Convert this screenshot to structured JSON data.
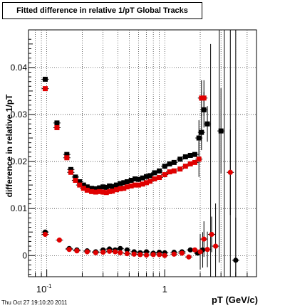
{
  "chart_data": {
    "type": "scatter",
    "title": "Fitted difference in relative 1/pT  Global Tracks",
    "xlabel": "pT (GeV/c)",
    "ylabel": "difference in relative 1/pT",
    "xscale": "log",
    "xlim": [
      0.07,
      6.0
    ],
    "ylim": [
      -0.0045,
      0.048
    ],
    "grid": true,
    "x_ticks": [
      {
        "v": 0.1,
        "label": "10",
        "sup": "-1"
      },
      {
        "v": 1,
        "label": "1",
        "sup": ""
      }
    ],
    "y_ticks": [
      {
        "v": 0,
        "label": "0"
      },
      {
        "v": 0.01,
        "label": "0.01"
      },
      {
        "v": 0.02,
        "label": "0.02"
      },
      {
        "v": 0.03,
        "label": "0.03"
      },
      {
        "v": 0.04,
        "label": "0.04"
      }
    ],
    "series": [
      {
        "marker": "square",
        "color": "#000000",
        "points": [
          [
            0.097,
            0.0375
          ],
          [
            0.122,
            0.0282
          ],
          [
            0.148,
            0.0215
          ],
          [
            0.16,
            0.0183
          ],
          [
            0.175,
            0.0167
          ],
          [
            0.19,
            0.0157
          ],
          [
            0.205,
            0.015
          ],
          [
            0.22,
            0.0146
          ],
          [
            0.24,
            0.0143
          ],
          [
            0.26,
            0.0142
          ],
          [
            0.28,
            0.0144
          ],
          [
            0.3,
            0.0146
          ],
          [
            0.32,
            0.0145
          ],
          [
            0.34,
            0.0148
          ],
          [
            0.36,
            0.0147
          ],
          [
            0.39,
            0.015
          ],
          [
            0.42,
            0.0153
          ],
          [
            0.45,
            0.0155
          ],
          [
            0.48,
            0.0157
          ],
          [
            0.52,
            0.016
          ],
          [
            0.56,
            0.0163
          ],
          [
            0.6,
            0.0162
          ],
          [
            0.65,
            0.0165
          ],
          [
            0.7,
            0.0168
          ],
          [
            0.75,
            0.017
          ],
          [
            0.82,
            0.0176
          ],
          [
            0.9,
            0.018
          ],
          [
            1.0,
            0.019
          ],
          [
            1.1,
            0.0195
          ],
          [
            1.2,
            0.0198
          ],
          [
            1.35,
            0.0205
          ],
          [
            1.5,
            0.021
          ],
          [
            1.65,
            0.0213
          ],
          [
            1.8,
            0.0215
          ],
          [
            1.95,
            0.025
          ],
          [
            2.05,
            0.0262
          ],
          [
            2.15,
            0.031
          ],
          [
            2.3,
            0.028
          ],
          [
            3.0,
            0.0265
          ]
        ]
      },
      {
        "marker": "square",
        "color": "#e00000",
        "points": [
          [
            0.097,
            0.0355
          ],
          [
            0.122,
            0.0272
          ],
          [
            0.148,
            0.0208
          ],
          [
            0.16,
            0.0177
          ],
          [
            0.175,
            0.016
          ],
          [
            0.19,
            0.015
          ],
          [
            0.205,
            0.0143
          ],
          [
            0.22,
            0.0139
          ],
          [
            0.24,
            0.0136
          ],
          [
            0.26,
            0.0135
          ],
          [
            0.28,
            0.0136
          ],
          [
            0.3,
            0.0135
          ],
          [
            0.32,
            0.0134
          ],
          [
            0.34,
            0.0136
          ],
          [
            0.36,
            0.0137
          ],
          [
            0.39,
            0.014
          ],
          [
            0.42,
            0.0142
          ],
          [
            0.45,
            0.0143
          ],
          [
            0.48,
            0.0146
          ],
          [
            0.52,
            0.0148
          ],
          [
            0.56,
            0.015
          ],
          [
            0.6,
            0.015
          ],
          [
            0.65,
            0.0152
          ],
          [
            0.7,
            0.0155
          ],
          [
            0.75,
            0.0158
          ],
          [
            0.82,
            0.0163
          ],
          [
            0.9,
            0.0166
          ],
          [
            1.0,
            0.0172
          ],
          [
            1.1,
            0.0178
          ],
          [
            1.2,
            0.018
          ],
          [
            1.35,
            0.0184
          ],
          [
            1.5,
            0.019
          ],
          [
            1.65,
            0.0195
          ],
          [
            1.8,
            0.0198
          ],
          [
            1.95,
            0.0205
          ],
          [
            2.05,
            0.0335
          ],
          [
            2.15,
            0.0335
          ]
        ]
      },
      {
        "marker": "circle",
        "color": "#000000",
        "points": [
          [
            0.097,
            0.005
          ],
          [
            0.155,
            0.0015
          ],
          [
            0.18,
            0.0012
          ],
          [
            0.22,
            0.001
          ],
          [
            0.26,
            0.0008
          ],
          [
            0.3,
            0.0012
          ],
          [
            0.34,
            0.0014
          ],
          [
            0.38,
            0.0012
          ],
          [
            0.42,
            0.0015
          ],
          [
            0.48,
            0.0012
          ],
          [
            0.55,
            0.0008
          ],
          [
            0.62,
            0.0006
          ],
          [
            0.7,
            0.0008
          ],
          [
            0.8,
            0.0005
          ],
          [
            0.9,
            0.0007
          ],
          [
            1.0,
            0.0006
          ],
          [
            1.2,
            0.0007
          ],
          [
            1.4,
            0.0008
          ],
          [
            1.65,
            0.0012
          ],
          [
            1.9,
            0.0005
          ],
          [
            2.1,
            0.0012
          ],
          [
            4.0,
            -0.001
          ]
        ]
      },
      {
        "marker": "circle",
        "color": "#e00000",
        "points": [
          [
            0.097,
            0.0045
          ],
          [
            0.128,
            0.0033
          ],
          [
            0.155,
            0.0013
          ],
          [
            0.18,
            0.001
          ],
          [
            0.22,
            0.0008
          ],
          [
            0.26,
            0.0006
          ],
          [
            0.3,
            0.0007
          ],
          [
            0.34,
            0.0009
          ],
          [
            0.38,
            0.0008
          ],
          [
            0.42,
            0.0006
          ],
          [
            0.48,
            0.0004
          ],
          [
            0.55,
            0.0003
          ],
          [
            0.62,
            0.0002
          ],
          [
            0.7,
            0.0001
          ],
          [
            0.8,
            0.0002
          ],
          [
            0.9,
            0.0002
          ],
          [
            1.0,
            0.0
          ],
          [
            1.2,
            0.0003
          ],
          [
            1.4,
            0.0005
          ],
          [
            1.6,
            -0.0003
          ],
          [
            1.8,
            0.0012
          ],
          [
            2.0,
            0.0008
          ],
          [
            2.15,
            0.0035
          ],
          [
            2.3,
            0.0013
          ],
          [
            2.5,
            0.0045
          ],
          [
            2.7,
            0.002
          ],
          [
            3.6,
            0.0177
          ]
        ]
      }
    ]
  },
  "footer": {
    "timestamp": "Thu Oct 27 19:10:20 2011"
  }
}
